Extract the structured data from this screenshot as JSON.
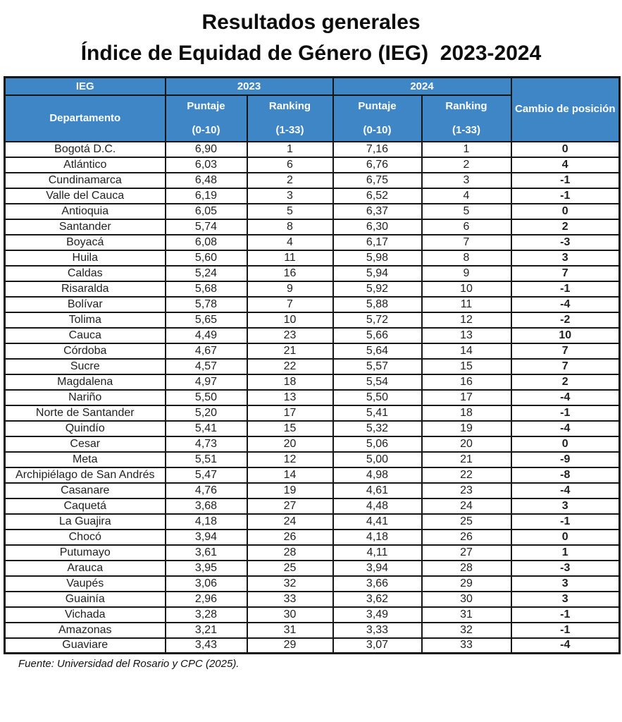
{
  "page": {
    "title_line1": "Resultados generales",
    "title_line2": "Índice de Equidad de Género (IEG)  2023-2024",
    "source_note": "Fuente: Universidad del Rosario y CPC (2025)."
  },
  "colors": {
    "header_blue": "#3e86c5",
    "change_value_blue": "#2e74b5",
    "grid_black": "#161616"
  },
  "table": {
    "group_headers": {
      "ieg": "IEG",
      "y2023": "2023",
      "y2024": "2024",
      "cambio": "Cambio de posición"
    },
    "column_headers": {
      "departamento": "Departamento",
      "puntaje_label": "Puntaje",
      "puntaje_range": "(0-10)",
      "ranking_label": "Ranking",
      "ranking_range": "(1-33)"
    }
  },
  "chart_data": {
    "type": "table",
    "title": "Resultados generales — Índice de Equidad de Género (IEG) 2023-2024",
    "columns": [
      "Departamento",
      "Puntaje 2023 (0-10)",
      "Ranking 2023 (1-33)",
      "Puntaje 2024 (0-10)",
      "Ranking 2024 (1-33)",
      "Cambio de posición"
    ],
    "rows": [
      [
        "Bogotá D.C.",
        "6,90",
        "1",
        "7,16",
        "1",
        "0"
      ],
      [
        "Atlántico",
        "6,03",
        "6",
        "6,76",
        "2",
        "4"
      ],
      [
        "Cundinamarca",
        "6,48",
        "2",
        "6,75",
        "3",
        "-1"
      ],
      [
        "Valle del Cauca",
        "6,19",
        "3",
        "6,52",
        "4",
        "-1"
      ],
      [
        "Antioquia",
        "6,05",
        "5",
        "6,37",
        "5",
        "0"
      ],
      [
        "Santander",
        "5,74",
        "8",
        "6,30",
        "6",
        "2"
      ],
      [
        "Boyacá",
        "6,08",
        "4",
        "6,17",
        "7",
        "-3"
      ],
      [
        "Huila",
        "5,60",
        "11",
        "5,98",
        "8",
        "3"
      ],
      [
        "Caldas",
        "5,24",
        "16",
        "5,94",
        "9",
        "7"
      ],
      [
        "Risaralda",
        "5,68",
        "9",
        "5,92",
        "10",
        "-1"
      ],
      [
        "Bolívar",
        "5,78",
        "7",
        "5,88",
        "11",
        "-4"
      ],
      [
        "Tolima",
        "5,65",
        "10",
        "5,72",
        "12",
        "-2"
      ],
      [
        "Cauca",
        "4,49",
        "23",
        "5,66",
        "13",
        "10"
      ],
      [
        "Córdoba",
        "4,67",
        "21",
        "5,64",
        "14",
        "7"
      ],
      [
        "Sucre",
        "4,57",
        "22",
        "5,57",
        "15",
        "7"
      ],
      [
        "Magdalena",
        "4,97",
        "18",
        "5,54",
        "16",
        "2"
      ],
      [
        "Nariño",
        "5,50",
        "13",
        "5,50",
        "17",
        "-4"
      ],
      [
        "Norte de Santander",
        "5,20",
        "17",
        "5,41",
        "18",
        "-1"
      ],
      [
        "Quindío",
        "5,41",
        "15",
        "5,32",
        "19",
        "-4"
      ],
      [
        "Cesar",
        "4,73",
        "20",
        "5,06",
        "20",
        "0"
      ],
      [
        "Meta",
        "5,51",
        "12",
        "5,00",
        "21",
        "-9"
      ],
      [
        "Archipiélago de San Andrés",
        "5,47",
        "14",
        "4,98",
        "22",
        "-8"
      ],
      [
        "Casanare",
        "4,76",
        "19",
        "4,61",
        "23",
        "-4"
      ],
      [
        "Caquetá",
        "3,68",
        "27",
        "4,48",
        "24",
        "3"
      ],
      [
        "La Guajira",
        "4,18",
        "24",
        "4,41",
        "25",
        "-1"
      ],
      [
        "Chocó",
        "3,94",
        "26",
        "4,18",
        "26",
        "0"
      ],
      [
        "Putumayo",
        "3,61",
        "28",
        "4,11",
        "27",
        "1"
      ],
      [
        "Arauca",
        "3,95",
        "25",
        "3,94",
        "28",
        "-3"
      ],
      [
        "Vaupés",
        "3,06",
        "32",
        "3,66",
        "29",
        "3"
      ],
      [
        "Guainía",
        "2,96",
        "33",
        "3,62",
        "30",
        "3"
      ],
      [
        "Vichada",
        "3,28",
        "30",
        "3,49",
        "31",
        "-1"
      ],
      [
        "Amazonas",
        "3,21",
        "31",
        "3,33",
        "32",
        "-1"
      ],
      [
        "Guaviare",
        "3,43",
        "29",
        "3,07",
        "33",
        "-4"
      ]
    ],
    "source": "Fuente: Universidad del Rosario y CPC (2025)."
  }
}
